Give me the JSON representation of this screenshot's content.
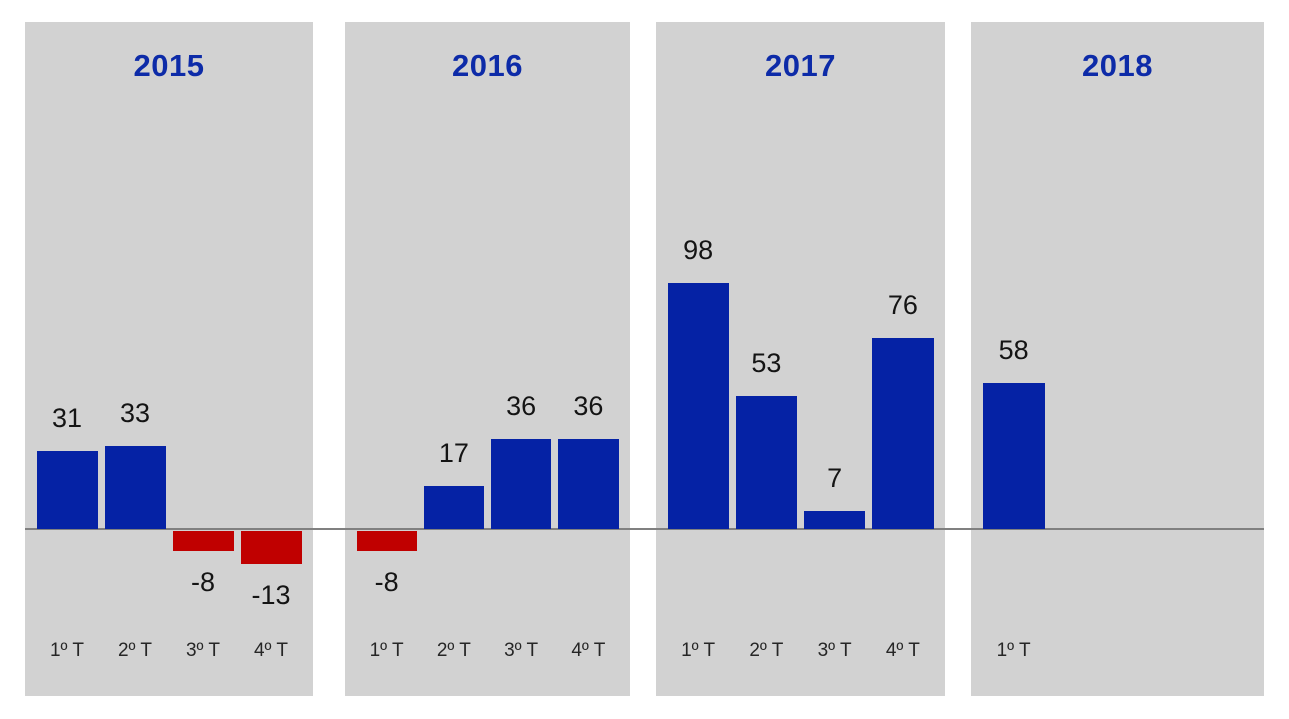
{
  "chart_data": {
    "type": "bar",
    "title": "",
    "xlabel": "",
    "ylabel": "",
    "value_labels_shown": true,
    "gridlines": false,
    "baseline_value": 0,
    "panels": [
      {
        "title": "2015",
        "categories": [
          "1º T",
          "2º T",
          "3º T",
          "4º T"
        ],
        "values": [
          31,
          33,
          -8,
          -13
        ]
      },
      {
        "title": "2016",
        "categories": [
          "1º T",
          "2º T",
          "3º T",
          "4º T"
        ],
        "values": [
          -8,
          17,
          36,
          36
        ]
      },
      {
        "title": "2017",
        "categories": [
          "1º T",
          "2º T",
          "3º T",
          "4º T"
        ],
        "values": [
          98,
          53,
          7,
          76
        ]
      },
      {
        "title": "2018",
        "categories": [
          "1º T"
        ],
        "values": [
          58
        ]
      }
    ]
  },
  "colors": {
    "panel_background": "#d2d2d2",
    "page_background": "#ffffff",
    "positive_bar": "#0522a5",
    "negative_bar": "#c00000",
    "panel_title": "#0d2ba8",
    "value_label": "#141414",
    "axis_label": "#262626",
    "baseline": "#808080"
  }
}
